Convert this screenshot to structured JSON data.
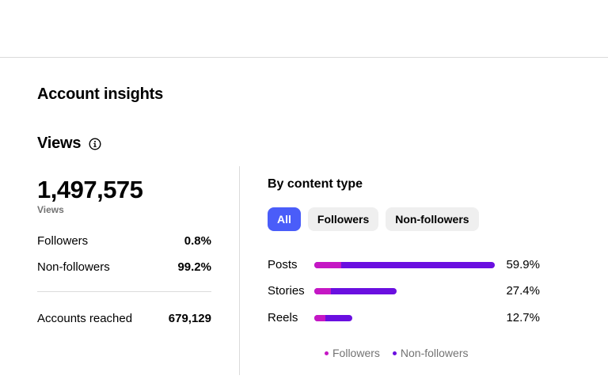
{
  "page": {
    "title": "Account insights"
  },
  "views": {
    "heading": "Views",
    "info_icon": "info-icon",
    "total": "1,497,575",
    "total_caption": "Views",
    "stats": [
      {
        "label": "Followers",
        "value": "0.8%"
      },
      {
        "label": "Non-followers",
        "value": "99.2%"
      }
    ],
    "accounts_reached": {
      "label": "Accounts reached",
      "value": "679,129"
    }
  },
  "content_type": {
    "title": "By content type",
    "filters": [
      {
        "label": "All",
        "active": true
      },
      {
        "label": "Followers",
        "active": false
      },
      {
        "label": "Non-followers",
        "active": false
      }
    ],
    "rows": [
      {
        "name": "Posts",
        "percent": "59.9%",
        "share": 59.9,
        "followers_share": 0.15
      },
      {
        "name": "Stories",
        "percent": "27.4%",
        "share": 27.4,
        "followers_share": 0.2
      },
      {
        "name": "Reels",
        "percent": "12.7%",
        "share": 12.7,
        "followers_share": 0.3
      }
    ],
    "legend": [
      {
        "label": "Followers",
        "color": "#c517c4"
      },
      {
        "label": "Non-followers",
        "color": "#6a0fe0"
      }
    ]
  },
  "colors": {
    "accent": "#4a5df9",
    "followers": "#c517c4",
    "non_followers": "#6a0fe0"
  }
}
